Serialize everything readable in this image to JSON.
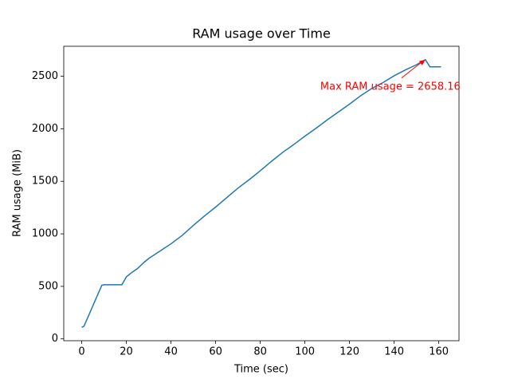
{
  "chart_data": {
    "type": "line",
    "title": "RAM usage over Time",
    "x_label": "Time (sec)",
    "y_label": "RAM usage (MiB)",
    "x": [
      0,
      1,
      9,
      10,
      18,
      20,
      22,
      25,
      28,
      30,
      35,
      40,
      45,
      50,
      55,
      60,
      65,
      70,
      75,
      80,
      85,
      90,
      95,
      100,
      105,
      110,
      115,
      120,
      125,
      130,
      135,
      140,
      145,
      150,
      154,
      156,
      161
    ],
    "values": [
      110,
      120,
      510,
      515,
      515,
      590,
      625,
      670,
      730,
      765,
      835,
      905,
      985,
      1080,
      1170,
      1255,
      1345,
      1435,
      1515,
      1600,
      1690,
      1775,
      1850,
      1930,
      2005,
      2085,
      2160,
      2235,
      2315,
      2385,
      2440,
      2505,
      2560,
      2610,
      2658.16,
      2590,
      2590
    ],
    "color": "#1f77b4",
    "xlim": [
      -8.05,
      169.05
    ],
    "ylim": [
      -17.4,
      2785.6
    ],
    "xticks": [
      0,
      20,
      40,
      60,
      80,
      100,
      120,
      140,
      160
    ],
    "yticks": [
      0,
      500,
      1000,
      1500,
      2000,
      2500
    ],
    "annotation": {
      "text": "Max RAM usage = 2658.16",
      "color": "red"
    }
  }
}
